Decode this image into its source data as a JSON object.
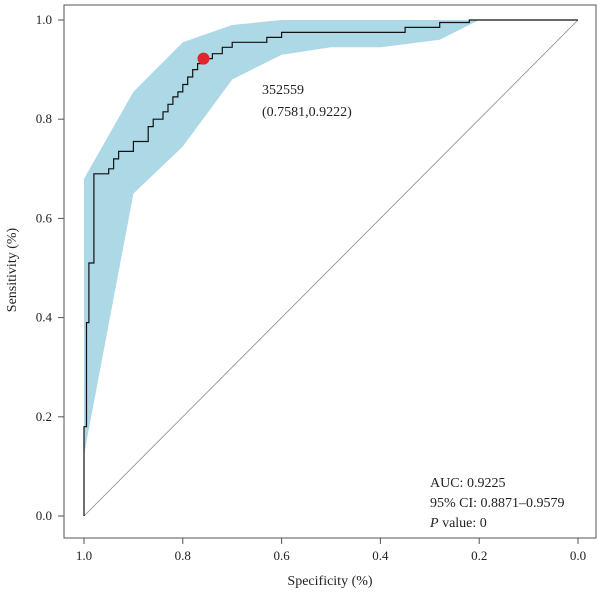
{
  "chart_data": {
    "type": "line",
    "xlabel": "Specificity (%)",
    "ylabel": "Sensitivity (%)",
    "xlim": [
      1.0,
      0.0
    ],
    "ylim": [
      0.0,
      1.0
    ],
    "x_ticks": [
      "1.0",
      "0.8",
      "0.6",
      "0.4",
      "0.2",
      "0.0"
    ],
    "y_ticks": [
      "0.0",
      "0.2",
      "0.4",
      "0.6",
      "0.8",
      "1.0"
    ],
    "x_tick_values": [
      1.0,
      0.8,
      0.6,
      0.4,
      0.2,
      0.0
    ],
    "y_tick_values": [
      0.0,
      0.2,
      0.4,
      0.6,
      0.8,
      1.0
    ],
    "grid": false,
    "colors": {
      "ci_band": "#add8e6",
      "roc_line": "#111111",
      "diagonal": "#888888",
      "optimal_point": "#e3242b"
    },
    "roc_curve": [
      [
        1.0,
        0.0
      ],
      [
        1.0,
        0.18
      ],
      [
        0.995,
        0.18
      ],
      [
        0.995,
        0.39
      ],
      [
        0.99,
        0.39
      ],
      [
        0.99,
        0.51
      ],
      [
        0.98,
        0.51
      ],
      [
        0.98,
        0.69
      ],
      [
        0.95,
        0.69
      ],
      [
        0.95,
        0.7
      ],
      [
        0.94,
        0.7
      ],
      [
        0.94,
        0.72
      ],
      [
        0.93,
        0.72
      ],
      [
        0.93,
        0.735
      ],
      [
        0.9,
        0.735
      ],
      [
        0.9,
        0.755
      ],
      [
        0.87,
        0.755
      ],
      [
        0.87,
        0.785
      ],
      [
        0.86,
        0.785
      ],
      [
        0.86,
        0.8
      ],
      [
        0.84,
        0.8
      ],
      [
        0.84,
        0.815
      ],
      [
        0.83,
        0.815
      ],
      [
        0.83,
        0.83
      ],
      [
        0.82,
        0.83
      ],
      [
        0.82,
        0.845
      ],
      [
        0.81,
        0.845
      ],
      [
        0.81,
        0.855
      ],
      [
        0.8,
        0.855
      ],
      [
        0.8,
        0.87
      ],
      [
        0.79,
        0.87
      ],
      [
        0.79,
        0.885
      ],
      [
        0.78,
        0.885
      ],
      [
        0.78,
        0.9
      ],
      [
        0.77,
        0.9
      ],
      [
        0.77,
        0.912
      ],
      [
        0.7581,
        0.912
      ],
      [
        0.7581,
        0.9222
      ],
      [
        0.74,
        0.9222
      ],
      [
        0.74,
        0.932
      ],
      [
        0.72,
        0.932
      ],
      [
        0.72,
        0.945
      ],
      [
        0.7,
        0.945
      ],
      [
        0.7,
        0.955
      ],
      [
        0.63,
        0.955
      ],
      [
        0.63,
        0.965
      ],
      [
        0.6,
        0.965
      ],
      [
        0.6,
        0.975
      ],
      [
        0.35,
        0.975
      ],
      [
        0.35,
        0.985
      ],
      [
        0.28,
        0.985
      ],
      [
        0.28,
        0.995
      ],
      [
        0.22,
        0.995
      ],
      [
        0.22,
        1.0
      ],
      [
        0.0,
        1.0
      ]
    ],
    "ci_upper": [
      [
        1.0,
        0.12
      ],
      [
        1.0,
        0.68
      ],
      [
        0.9,
        0.855
      ],
      [
        0.8,
        0.955
      ],
      [
        0.7,
        0.99
      ],
      [
        0.6,
        1.0
      ],
      [
        0.2,
        1.0
      ]
    ],
    "ci_lower": [
      [
        0.2,
        1.0
      ],
      [
        0.28,
        0.96
      ],
      [
        0.4,
        0.945
      ],
      [
        0.5,
        0.945
      ],
      [
        0.6,
        0.93
      ],
      [
        0.7,
        0.88
      ],
      [
        0.8,
        0.745
      ],
      [
        0.9,
        0.65
      ],
      [
        0.995,
        0.15
      ],
      [
        1.0,
        0.12
      ]
    ],
    "optimal_point": {
      "x": 0.7581,
      "y": 0.9222
    },
    "annotation": {
      "threshold": "352559",
      "coords": "(0.7581,0.9222)"
    },
    "stats": {
      "auc": "AUC: 0.9225",
      "ci": "95% CI: 0.8871–0.9579",
      "p_label": "P",
      "p_value": " value: 0"
    }
  }
}
